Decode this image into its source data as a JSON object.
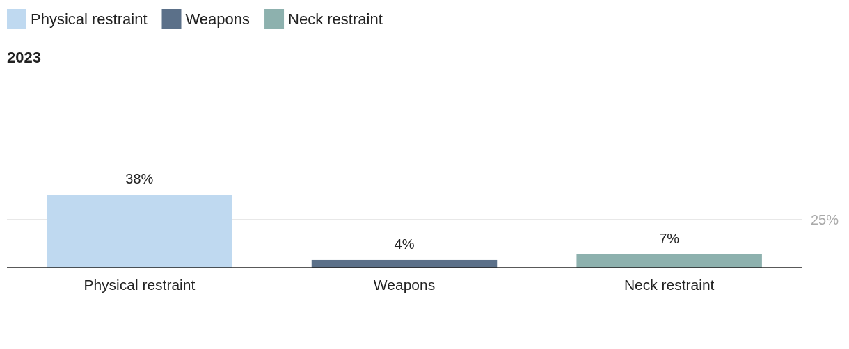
{
  "chart_data": {
    "type": "bar",
    "title": "2023",
    "categories": [
      "Physical restraint",
      "Weapons",
      "Neck restraint"
    ],
    "series": [
      {
        "name": "Physical restraint",
        "color": "#bfd9f0",
        "values": [
          38,
          null,
          null
        ],
        "value_labels": [
          "38%",
          null,
          null
        ]
      },
      {
        "name": "Weapons",
        "color": "#5b7089",
        "values": [
          null,
          4,
          null
        ],
        "value_labels": [
          null,
          "4%",
          null
        ]
      },
      {
        "name": "Neck restraint",
        "color": "#8db1ae",
        "values": [
          null,
          null,
          7
        ],
        "value_labels": [
          null,
          null,
          "7%"
        ]
      }
    ],
    "ref_lines": [
      {
        "axis": "y",
        "value": 25,
        "label": "25%",
        "color": "#e0e0e0"
      }
    ],
    "legend": "top left"
  }
}
